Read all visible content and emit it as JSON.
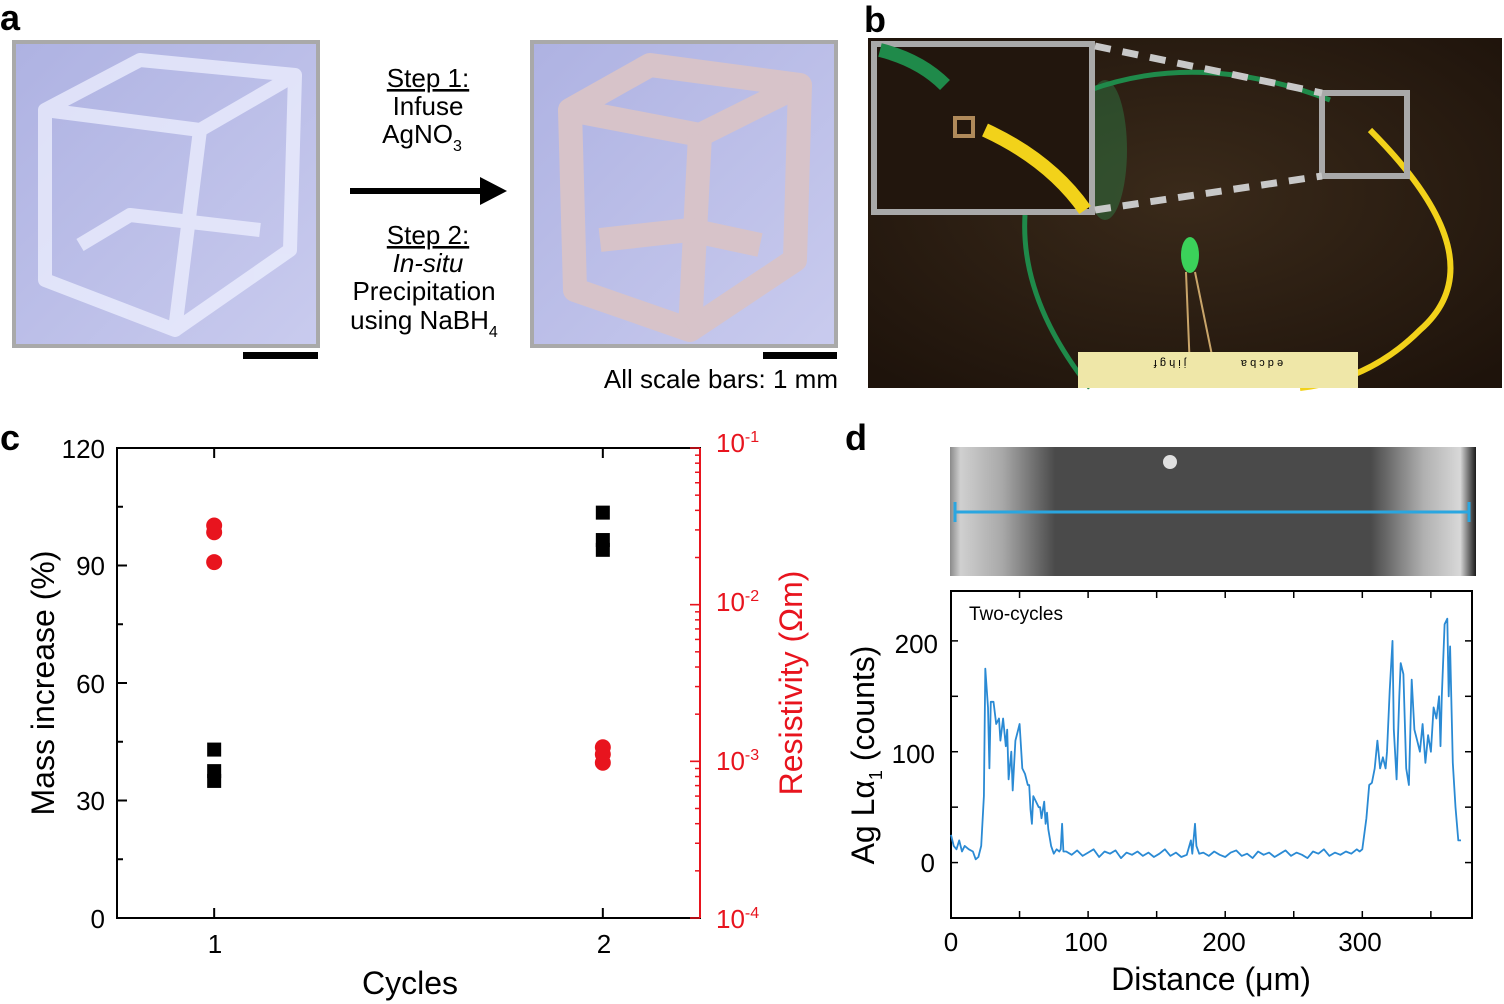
{
  "panel_labels": {
    "a": "a",
    "b": "b",
    "c": "c",
    "d": "d"
  },
  "panel_a": {
    "step1_title": "Step 1:",
    "step1_line1": "Infuse",
    "step1_line2": "AgNO",
    "step1_line2_sub": "3",
    "step2_title": "Step 2:",
    "step2_line1": "In-situ",
    "step2_line2": "Precipitation",
    "step2_line3": "using NaBH",
    "step2_line3_sub": "4",
    "scale_note": "All scale bars: 1 mm",
    "colors": {
      "photo_bg": "#b9bde6",
      "photo_frame": "#a9a9a9",
      "arrow": "#000000"
    }
  },
  "panel_b": {
    "breadboard_left": "j i h g f",
    "breadboard_right": "e d c b a",
    "colors": {
      "background": "#2a1a10",
      "green_wire": "#1f8a4a",
      "yellow_wire": "#f2d21a",
      "led": "#3bd15a",
      "frame": "#a9a9a9"
    }
  },
  "chart_data": [
    {
      "type": "scatter",
      "xlabel": "Cycles",
      "ylabel": "Mass increase (%)",
      "y2label": "Resistivity (Ωm)",
      "x_ticks": [
        "1",
        "2"
      ],
      "y_ticks": [
        "0",
        "30",
        "60",
        "90",
        "120"
      ],
      "y2_ticks": [
        {
          "base": "10",
          "exp": "-4"
        },
        {
          "base": "10",
          "exp": "-3"
        },
        {
          "base": "10",
          "exp": "-2"
        },
        {
          "base": "10",
          "exp": "-1"
        }
      ],
      "xlim": [
        0.75,
        2.25
      ],
      "ylim": [
        0,
        120
      ],
      "y2lim": [
        0.0001,
        0.1
      ],
      "y2scale": "log",
      "grid": false,
      "series": [
        {
          "axis": "left",
          "marker": "square",
          "color": "#000000",
          "points": [
            [
              1,
              43
            ],
            [
              1,
              37.5
            ],
            [
              1,
              35
            ],
            [
              2,
              103.5
            ],
            [
              2,
              96.5
            ],
            [
              2,
              94
            ]
          ]
        },
        {
          "axis": "right",
          "marker": "circle",
          "color": "#e8141e",
          "points": [
            [
              1,
              0.032
            ],
            [
              1,
              0.029
            ],
            [
              1,
              0.0187
            ],
            [
              2,
              0.00123
            ],
            [
              2,
              0.00111
            ],
            [
              2,
              0.00098
            ]
          ]
        }
      ]
    },
    {
      "type": "line",
      "annotation": "Two-cycles",
      "xlabel": "Distance (μm)",
      "ylabel_main": "Ag Lα",
      "ylabel_sub": "1",
      "ylabel_tail": " (counts)",
      "x_ticks": [
        "0",
        "100",
        "200",
        "300"
      ],
      "y_ticks": [
        "0",
        "100",
        "200"
      ],
      "xlim": [
        0,
        380
      ],
      "ylim": [
        -50,
        245
      ],
      "grid": false,
      "color": "#2a8ad4",
      "x": [
        0,
        2,
        4,
        6,
        8,
        10,
        13,
        16,
        18,
        20,
        22,
        24,
        25,
        27,
        28,
        29,
        31,
        33,
        35,
        36,
        38,
        40,
        41,
        42,
        44,
        45,
        47,
        49,
        50,
        52,
        54,
        56,
        57,
        58,
        59,
        60,
        62,
        64,
        65,
        66,
        68,
        69,
        70,
        71,
        73,
        75,
        77,
        79,
        80,
        81,
        82,
        84,
        88,
        92,
        96,
        100,
        104,
        108,
        112,
        116,
        120,
        124,
        128,
        132,
        136,
        140,
        144,
        148,
        152,
        156,
        160,
        164,
        168,
        172,
        175,
        176,
        178,
        179,
        181,
        184,
        188,
        192,
        196,
        200,
        204,
        208,
        212,
        216,
        220,
        224,
        228,
        232,
        236,
        240,
        244,
        248,
        252,
        256,
        260,
        264,
        268,
        272,
        276,
        280,
        284,
        288,
        292,
        296,
        298,
        300,
        303,
        305,
        307,
        309,
        311,
        313,
        315,
        317,
        318,
        320,
        322,
        323,
        325,
        327,
        328,
        330,
        332,
        334,
        336,
        338,
        340,
        342,
        344,
        346,
        348,
        350,
        352,
        354,
        356,
        357,
        358,
        360,
        362,
        363,
        364,
        366,
        368,
        370,
        372
      ],
      "y": [
        25,
        15,
        12,
        20,
        10,
        15,
        12,
        10,
        3,
        5,
        15,
        60,
        175,
        140,
        85,
        145,
        145,
        125,
        130,
        110,
        130,
        105,
        120,
        75,
        100,
        65,
        110,
        120,
        125,
        85,
        80,
        70,
        70,
        48,
        35,
        60,
        55,
        50,
        50,
        40,
        55,
        35,
        45,
        30,
        15,
        8,
        12,
        10,
        12,
        35,
        10,
        10,
        7,
        11,
        6,
        9,
        12,
        5,
        10,
        8,
        11,
        4,
        9,
        7,
        10,
        6,
        9,
        5,
        8,
        12,
        6,
        9,
        5,
        7,
        20,
        8,
        35,
        15,
        8,
        9,
        6,
        10,
        7,
        5,
        9,
        11,
        6,
        8,
        4,
        10,
        7,
        9,
        5,
        8,
        11,
        6,
        9,
        7,
        4,
        10,
        8,
        12,
        6,
        9,
        7,
        10,
        8,
        12,
        10,
        12,
        40,
        70,
        72,
        85,
        110,
        85,
        95,
        85,
        100,
        155,
        200,
        120,
        75,
        150,
        180,
        170,
        85,
        70,
        165,
        120,
        110,
        100,
        125,
        90,
        115,
        100,
        140,
        130,
        150,
        105,
        150,
        215,
        220,
        150,
        195,
        90,
        50,
        20,
        20
      ]
    }
  ],
  "panel_d_image": {
    "colors": {
      "sem_dark": "#4a4a4a",
      "sem_light": "#c8c8c8",
      "scan_line": "#2aa6e0"
    }
  }
}
